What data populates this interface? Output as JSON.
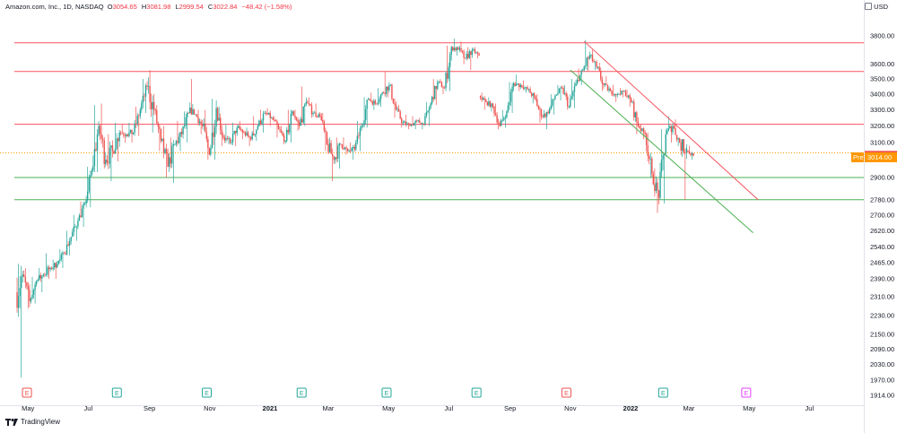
{
  "legend": {
    "title": "Amazon.com, Inc., 1D, NASDAQ",
    "o_label": "O",
    "o_value": "3054.65",
    "h_label": "H",
    "h_value": "3081.98",
    "l_label": "L",
    "l_value": "2999.54",
    "c_label": "C",
    "c_value": "3022.84",
    "change": "−48.42 (−1.58%)"
  },
  "currency": "USD",
  "branding": "TradingView",
  "colors": {
    "up": "#26a69a",
    "down": "#ef5350",
    "res": "#f7525f",
    "sup": "#4caf50",
    "pre": "#ff9800"
  },
  "chart_data": {
    "type": "candlestick",
    "x_ticks": [
      {
        "label": "May",
        "date": "2020-05-01"
      },
      {
        "label": "Jul",
        "date": "2020-07-01"
      },
      {
        "label": "Sep",
        "date": "2020-09-01"
      },
      {
        "label": "Nov",
        "date": "2020-11-01"
      },
      {
        "label": "2021",
        "date": "2021-01-01",
        "bold": true
      },
      {
        "label": "Mar",
        "date": "2021-03-01"
      },
      {
        "label": "May",
        "date": "2021-05-01"
      },
      {
        "label": "Jul",
        "date": "2021-07-01"
      },
      {
        "label": "Sep",
        "date": "2021-09-01"
      },
      {
        "label": "Nov",
        "date": "2021-11-01"
      },
      {
        "label": "2022",
        "date": "2022-01-01",
        "bold": true
      },
      {
        "label": "Mar",
        "date": "2022-03-01"
      },
      {
        "label": "May",
        "date": "2022-05-01"
      },
      {
        "label": "Jul",
        "date": "2022-07-01"
      }
    ],
    "y_ticks": [
      "3800.00",
      "3600.00",
      "3500.00",
      "3400.00",
      "3300.00",
      "3200.00",
      "3100.00",
      "2900.00",
      "2780.00",
      "2700.00",
      "2620.00",
      "2540.00",
      "2465.00",
      "2390.00",
      "2310.00",
      "2230.00",
      "2150.00",
      "2090.00",
      "2030.00",
      "1970.00",
      "1914.00"
    ],
    "y_scale": "log",
    "last_price": "3022.84",
    "premarket": {
      "label": "Pre",
      "value": "3014.00"
    },
    "candles_weekly": [
      {
        "t": "2020-04-20",
        "o": 2330,
        "h": 2460,
        "l": 1980,
        "c": 2410
      },
      {
        "t": "2020-04-27",
        "o": 2410,
        "h": 2440,
        "l": 2260,
        "c": 2290
      },
      {
        "t": "2020-05-04",
        "o": 2290,
        "h": 2400,
        "l": 2280,
        "c": 2380
      },
      {
        "t": "2020-05-11",
        "o": 2380,
        "h": 2440,
        "l": 2330,
        "c": 2410
      },
      {
        "t": "2020-05-18",
        "o": 2410,
        "h": 2510,
        "l": 2390,
        "c": 2440
      },
      {
        "t": "2020-05-25",
        "o": 2440,
        "h": 2480,
        "l": 2390,
        "c": 2460
      },
      {
        "t": "2020-06-01",
        "o": 2460,
        "h": 2530,
        "l": 2440,
        "c": 2510
      },
      {
        "t": "2020-06-08",
        "o": 2510,
        "h": 2620,
        "l": 2500,
        "c": 2590
      },
      {
        "t": "2020-06-15",
        "o": 2590,
        "h": 2700,
        "l": 2570,
        "c": 2670
      },
      {
        "t": "2020-06-22",
        "o": 2670,
        "h": 2770,
        "l": 2640,
        "c": 2760
      },
      {
        "t": "2020-06-29",
        "o": 2760,
        "h": 2960,
        "l": 2740,
        "c": 2940
      },
      {
        "t": "2020-07-06",
        "o": 2940,
        "h": 3330,
        "l": 2930,
        "c": 3200
      },
      {
        "t": "2020-07-13",
        "o": 3200,
        "h": 3340,
        "l": 2950,
        "c": 3000
      },
      {
        "t": "2020-07-20",
        "o": 3000,
        "h": 3150,
        "l": 2880,
        "c": 3050
      },
      {
        "t": "2020-07-27",
        "o": 3050,
        "h": 3220,
        "l": 2990,
        "c": 3160
      },
      {
        "t": "2020-08-03",
        "o": 3160,
        "h": 3210,
        "l": 3100,
        "c": 3150
      },
      {
        "t": "2020-08-10",
        "o": 3150,
        "h": 3220,
        "l": 3100,
        "c": 3160
      },
      {
        "t": "2020-08-17",
        "o": 3160,
        "h": 3320,
        "l": 3140,
        "c": 3300
      },
      {
        "t": "2020-08-24",
        "o": 3300,
        "h": 3500,
        "l": 3280,
        "c": 3450
      },
      {
        "t": "2020-08-31",
        "o": 3450,
        "h": 3560,
        "l": 3160,
        "c": 3300
      },
      {
        "t": "2020-09-07",
        "o": 3300,
        "h": 3330,
        "l": 3050,
        "c": 3110
      },
      {
        "t": "2020-09-14",
        "o": 3110,
        "h": 3200,
        "l": 2900,
        "c": 2960
      },
      {
        "t": "2020-09-21",
        "o": 2960,
        "h": 3130,
        "l": 2870,
        "c": 3090
      },
      {
        "t": "2020-09-28",
        "o": 3090,
        "h": 3230,
        "l": 3050,
        "c": 3150
      },
      {
        "t": "2020-10-05",
        "o": 3150,
        "h": 3290,
        "l": 3100,
        "c": 3280
      },
      {
        "t": "2020-10-12",
        "o": 3280,
        "h": 3500,
        "l": 3270,
        "c": 3270
      },
      {
        "t": "2020-10-19",
        "o": 3270,
        "h": 3300,
        "l": 3150,
        "c": 3200
      },
      {
        "t": "2020-10-26",
        "o": 3200,
        "h": 3300,
        "l": 3000,
        "c": 3030
      },
      {
        "t": "2020-11-02",
        "o": 3030,
        "h": 3370,
        "l": 3000,
        "c": 3310
      },
      {
        "t": "2020-11-09",
        "o": 3310,
        "h": 3320,
        "l": 3080,
        "c": 3130
      },
      {
        "t": "2020-11-16",
        "o": 3130,
        "h": 3210,
        "l": 3090,
        "c": 3100
      },
      {
        "t": "2020-11-23",
        "o": 3100,
        "h": 3220,
        "l": 3080,
        "c": 3190
      },
      {
        "t": "2020-11-30",
        "o": 3190,
        "h": 3230,
        "l": 3120,
        "c": 3160
      },
      {
        "t": "2020-12-07",
        "o": 3160,
        "h": 3190,
        "l": 3080,
        "c": 3120
      },
      {
        "t": "2020-12-14",
        "o": 3120,
        "h": 3260,
        "l": 3110,
        "c": 3200
      },
      {
        "t": "2020-12-21",
        "o": 3200,
        "h": 3300,
        "l": 3160,
        "c": 3280
      },
      {
        "t": "2020-12-28",
        "o": 3280,
        "h": 3310,
        "l": 3200,
        "c": 3250
      },
      {
        "t": "2021-01-04",
        "o": 3250,
        "h": 3260,
        "l": 3130,
        "c": 3180
      },
      {
        "t": "2021-01-11",
        "o": 3180,
        "h": 3200,
        "l": 3090,
        "c": 3110
      },
      {
        "t": "2021-01-18",
        "o": 3110,
        "h": 3300,
        "l": 3100,
        "c": 3290
      },
      {
        "t": "2021-01-25",
        "o": 3290,
        "h": 3300,
        "l": 3170,
        "c": 3200
      },
      {
        "t": "2021-02-01",
        "o": 3200,
        "h": 3450,
        "l": 3200,
        "c": 3350
      },
      {
        "t": "2021-02-08",
        "o": 3350,
        "h": 3380,
        "l": 3250,
        "c": 3280
      },
      {
        "t": "2021-02-15",
        "o": 3280,
        "h": 3340,
        "l": 3250,
        "c": 3260
      },
      {
        "t": "2021-02-22",
        "o": 3260,
        "h": 3280,
        "l": 3050,
        "c": 3090
      },
      {
        "t": "2021-03-01",
        "o": 3090,
        "h": 3130,
        "l": 2880,
        "c": 3000
      },
      {
        "t": "2021-03-08",
        "o": 3000,
        "h": 3130,
        "l": 2950,
        "c": 3090
      },
      {
        "t": "2021-03-15",
        "o": 3090,
        "h": 3130,
        "l": 3030,
        "c": 3050
      },
      {
        "t": "2021-03-22",
        "o": 3050,
        "h": 3100,
        "l": 3000,
        "c": 3060
      },
      {
        "t": "2021-03-29",
        "o": 3060,
        "h": 3230,
        "l": 3050,
        "c": 3200
      },
      {
        "t": "2021-04-05",
        "o": 3200,
        "h": 3380,
        "l": 3190,
        "c": 3370
      },
      {
        "t": "2021-04-12",
        "o": 3370,
        "h": 3410,
        "l": 3300,
        "c": 3340
      },
      {
        "t": "2021-04-19",
        "o": 3340,
        "h": 3440,
        "l": 3320,
        "c": 3410
      },
      {
        "t": "2021-04-26",
        "o": 3410,
        "h": 3550,
        "l": 3380,
        "c": 3460
      },
      {
        "t": "2021-05-03",
        "o": 3460,
        "h": 3470,
        "l": 3250,
        "c": 3300
      },
      {
        "t": "2021-05-10",
        "o": 3300,
        "h": 3330,
        "l": 3190,
        "c": 3220
      },
      {
        "t": "2021-05-17",
        "o": 3220,
        "h": 3270,
        "l": 3180,
        "c": 3200
      },
      {
        "t": "2021-05-24",
        "o": 3200,
        "h": 3260,
        "l": 3180,
        "c": 3230
      },
      {
        "t": "2021-05-31",
        "o": 3230,
        "h": 3250,
        "l": 3180,
        "c": 3210
      },
      {
        "t": "2021-06-07",
        "o": 3210,
        "h": 3350,
        "l": 3200,
        "c": 3340
      },
      {
        "t": "2021-06-14",
        "o": 3340,
        "h": 3500,
        "l": 3330,
        "c": 3480
      },
      {
        "t": "2021-06-21",
        "o": 3480,
        "h": 3500,
        "l": 3400,
        "c": 3440
      },
      {
        "t": "2021-06-28",
        "o": 3440,
        "h": 3730,
        "l": 3420,
        "c": 3720
      },
      {
        "t": "2021-07-05",
        "o": 3720,
        "h": 3780,
        "l": 3660,
        "c": 3700
      },
      {
        "t": "2021-07-12",
        "o": 3700,
        "h": 3760,
        "l": 3600,
        "c": 3640
      },
      {
        "t": "2021-07-19",
        "o": 3640,
        "h": 3720,
        "l": 3560,
        "c": 3700
      },
      {
        "t": "2021-07-26",
        "o": 3700,
        "h": 3720,
        "l": 3640,
        "c": 3660
      },
      {
        "t": "2021-08-02",
        "o": 3390,
        "h": 3410,
        "l": 3300,
        "c": 3350
      },
      {
        "t": "2021-08-09",
        "o": 3350,
        "h": 3380,
        "l": 3290,
        "c": 3320
      },
      {
        "t": "2021-08-16",
        "o": 3320,
        "h": 3340,
        "l": 3180,
        "c": 3200
      },
      {
        "t": "2021-08-23",
        "o": 3200,
        "h": 3300,
        "l": 3190,
        "c": 3290
      },
      {
        "t": "2021-08-30",
        "o": 3290,
        "h": 3480,
        "l": 3280,
        "c": 3470
      },
      {
        "t": "2021-09-06",
        "o": 3470,
        "h": 3530,
        "l": 3420,
        "c": 3460
      },
      {
        "t": "2021-09-13",
        "o": 3460,
        "h": 3490,
        "l": 3410,
        "c": 3430
      },
      {
        "t": "2021-09-20",
        "o": 3430,
        "h": 3450,
        "l": 3340,
        "c": 3380
      },
      {
        "t": "2021-09-27",
        "o": 3380,
        "h": 3400,
        "l": 3220,
        "c": 3260
      },
      {
        "t": "2021-10-04",
        "o": 3260,
        "h": 3300,
        "l": 3180,
        "c": 3280
      },
      {
        "t": "2021-10-11",
        "o": 3280,
        "h": 3400,
        "l": 3270,
        "c": 3390
      },
      {
        "t": "2021-10-18",
        "o": 3390,
        "h": 3460,
        "l": 3360,
        "c": 3440
      },
      {
        "t": "2021-10-25",
        "o": 3440,
        "h": 3460,
        "l": 3300,
        "c": 3320
      },
      {
        "t": "2021-11-01",
        "o": 3320,
        "h": 3500,
        "l": 3310,
        "c": 3470
      },
      {
        "t": "2021-11-08",
        "o": 3470,
        "h": 3570,
        "l": 3460,
        "c": 3560
      },
      {
        "t": "2021-11-15",
        "o": 3560,
        "h": 3770,
        "l": 3550,
        "c": 3660
      },
      {
        "t": "2021-11-22",
        "o": 3660,
        "h": 3700,
        "l": 3560,
        "c": 3580
      },
      {
        "t": "2021-11-29",
        "o": 3580,
        "h": 3610,
        "l": 3420,
        "c": 3460
      },
      {
        "t": "2021-12-06",
        "o": 3460,
        "h": 3520,
        "l": 3410,
        "c": 3420
      },
      {
        "t": "2021-12-13",
        "o": 3420,
        "h": 3460,
        "l": 3350,
        "c": 3400
      },
      {
        "t": "2021-12-20",
        "o": 3400,
        "h": 3440,
        "l": 3380,
        "c": 3420
      },
      {
        "t": "2021-12-27",
        "o": 3420,
        "h": 3430,
        "l": 3320,
        "c": 3350
      },
      {
        "t": "2022-01-03",
        "o": 3350,
        "h": 3370,
        "l": 3150,
        "c": 3200
      },
      {
        "t": "2022-01-10",
        "o": 3200,
        "h": 3210,
        "l": 3120,
        "c": 3150
      },
      {
        "t": "2022-01-17",
        "o": 3150,
        "h": 3160,
        "l": 2900,
        "c": 2920
      },
      {
        "t": "2022-01-24",
        "o": 2920,
        "h": 2950,
        "l": 2710,
        "c": 2790
      },
      {
        "t": "2022-01-31",
        "o": 2790,
        "h": 3180,
        "l": 2760,
        "c": 3150
      },
      {
        "t": "2022-02-07",
        "o": 3150,
        "h": 3260,
        "l": 3100,
        "c": 3200
      },
      {
        "t": "2022-02-14",
        "o": 3200,
        "h": 3240,
        "l": 3080,
        "c": 3100
      },
      {
        "t": "2022-02-21",
        "o": 3100,
        "h": 3120,
        "l": 2780,
        "c": 3070
      },
      {
        "t": "2022-02-28",
        "o": 3054.65,
        "h": 3081.98,
        "l": 2999.54,
        "c": 3022.84
      }
    ],
    "resistance_levels": [
      3750,
      3550,
      3210
    ],
    "support_levels": [
      2900,
      2780
    ],
    "orange_dotted_level": 3040,
    "trendlines": [
      {
        "kind": "resistance",
        "from": {
          "t": "2021-11-15",
          "price": 3760
        },
        "to": {
          "t": "2022-05-10",
          "price": 2780
        }
      },
      {
        "kind": "support",
        "from": {
          "t": "2021-11-01",
          "price": 3560
        },
        "to": {
          "t": "2022-05-05",
          "price": 2610
        }
      }
    ],
    "earnings_markers": [
      {
        "t": "2020-04-30",
        "label": "E",
        "kind": "down"
      },
      {
        "t": "2020-07-30",
        "label": "E",
        "kind": "up"
      },
      {
        "t": "2020-10-29",
        "label": "E",
        "kind": "up"
      },
      {
        "t": "2021-02-02",
        "label": "E",
        "kind": "up"
      },
      {
        "t": "2021-04-29",
        "label": "E",
        "kind": "up"
      },
      {
        "t": "2021-07-29",
        "label": "E",
        "kind": "up"
      },
      {
        "t": "2021-10-28",
        "label": "E",
        "kind": "down"
      },
      {
        "t": "2022-02-03",
        "label": "E",
        "kind": "up"
      },
      {
        "t": "2022-04-28",
        "label": "E",
        "kind": "future"
      }
    ]
  }
}
